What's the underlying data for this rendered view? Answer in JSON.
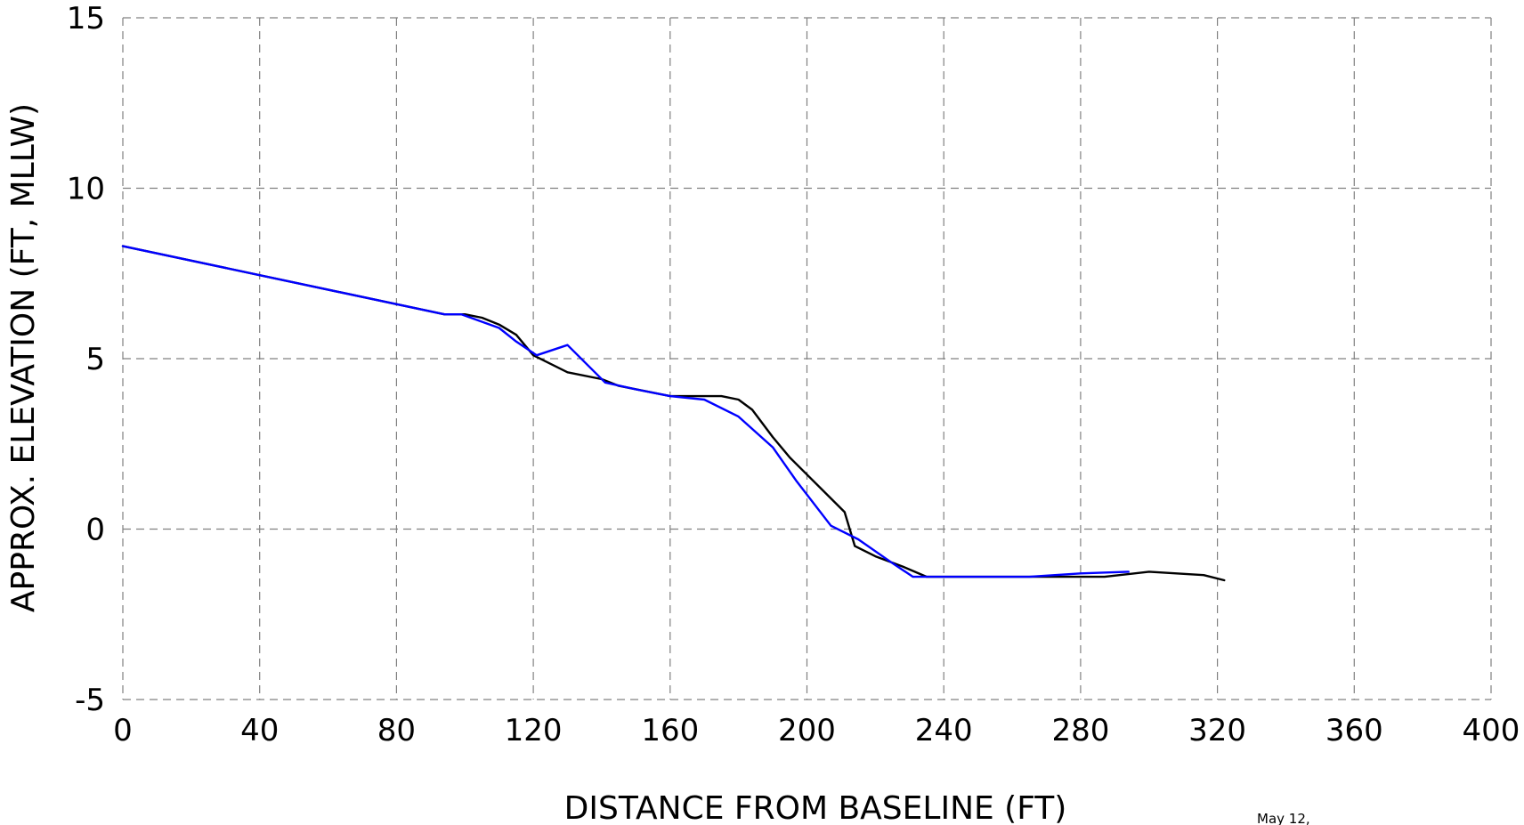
{
  "chart_data": {
    "type": "line",
    "xlabel": "DISTANCE FROM BASELINE (FT)",
    "ylabel": "APPROX. ELEVATION (FT, MLLW)",
    "xlim": [
      0,
      400
    ],
    "ylim": [
      -5,
      15
    ],
    "x_ticks": [
      "0",
      "40",
      "80",
      "120",
      "160",
      "200",
      "240",
      "280",
      "320",
      "360",
      "400"
    ],
    "y_ticks": [
      "-5",
      "0",
      "5",
      "10",
      "15"
    ],
    "grid": true,
    "grid_style": "dashed",
    "annotation": "May 12,",
    "series": [
      {
        "color": "#000000",
        "points": [
          [
            0,
            8.3
          ],
          [
            94,
            6.3
          ],
          [
            100,
            6.3
          ],
          [
            105,
            6.2
          ],
          [
            110,
            6.0
          ],
          [
            115,
            5.7
          ],
          [
            120,
            5.1
          ],
          [
            130,
            4.6
          ],
          [
            140,
            4.4
          ],
          [
            145,
            4.2
          ],
          [
            160,
            3.9
          ],
          [
            175,
            3.9
          ],
          [
            180,
            3.8
          ],
          [
            184,
            3.5
          ],
          [
            190,
            2.7
          ],
          [
            195,
            2.1
          ],
          [
            211,
            0.5
          ],
          [
            214,
            -0.5
          ],
          [
            220,
            -0.8
          ],
          [
            228,
            -1.1
          ],
          [
            235,
            -1.4
          ],
          [
            270,
            -1.4
          ],
          [
            287,
            -1.4
          ],
          [
            300,
            -1.25
          ],
          [
            316,
            -1.35
          ],
          [
            322,
            -1.5
          ]
        ]
      },
      {
        "color": "#0000ff",
        "points": [
          [
            0,
            8.3
          ],
          [
            94,
            6.3
          ],
          [
            99,
            6.3
          ],
          [
            110,
            5.9
          ],
          [
            115,
            5.5
          ],
          [
            121,
            5.1
          ],
          [
            130,
            5.4
          ],
          [
            141,
            4.3
          ],
          [
            150,
            4.1
          ],
          [
            160,
            3.9
          ],
          [
            170,
            3.8
          ],
          [
            180,
            3.3
          ],
          [
            190,
            2.4
          ],
          [
            197,
            1.4
          ],
          [
            207,
            0.1
          ],
          [
            215,
            -0.3
          ],
          [
            225,
            -1.0
          ],
          [
            231,
            -1.4
          ],
          [
            265,
            -1.4
          ],
          [
            280,
            -1.3
          ],
          [
            294,
            -1.25
          ]
        ]
      }
    ]
  }
}
